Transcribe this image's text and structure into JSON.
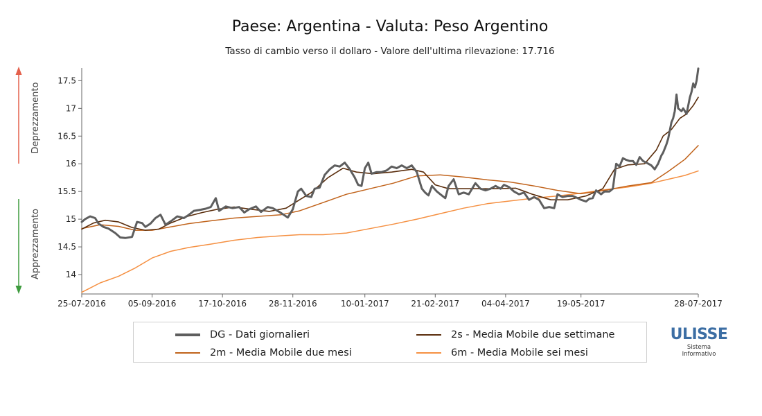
{
  "chart_data": {
    "type": "line",
    "title": "Paese: Argentina - Valuta: Peso Argentino",
    "subtitle": "Tasso di cambio verso il dollaro - Valore dell'ultima rilevazione: 17.716",
    "ylim": [
      13.65,
      17.73
    ],
    "y_ticks": [
      "14",
      "14.5",
      "15",
      "15.5",
      "16",
      "16.5",
      "17",
      "17.5"
    ],
    "x_range": [
      "2016-07-25",
      "2017-07-28"
    ],
    "x_ticks": [
      "25-07-2016",
      "05-09-2016",
      "17-10-2016",
      "28-11-2016",
      "10-01-2017",
      "21-02-2017",
      "04-04-2017",
      "19-05-2017",
      "28-07-2017"
    ],
    "ylabel_top": "Deprezzamento",
    "ylabel_bottom": "Apprezzamento",
    "grid": false,
    "series": [
      {
        "key": "6m",
        "name": "6m - Media Mobile sei mesi",
        "color": "#f59042",
        "width": 1.5,
        "points": [
          [
            "2016-07-25",
            13.68
          ],
          [
            "2016-08-05",
            13.85
          ],
          [
            "2016-08-16",
            13.97
          ],
          [
            "2016-08-26",
            14.12
          ],
          [
            "2016-09-05",
            14.3
          ],
          [
            "2016-09-16",
            14.42
          ],
          [
            "2016-09-27",
            14.49
          ],
          [
            "2016-10-10",
            14.55
          ],
          [
            "2016-10-24",
            14.62
          ],
          [
            "2016-11-07",
            14.67
          ],
          [
            "2016-11-21",
            14.7
          ],
          [
            "2016-12-02",
            14.72
          ],
          [
            "2016-12-16",
            14.72
          ],
          [
            "2016-12-30",
            14.75
          ],
          [
            "2017-01-13",
            14.83
          ],
          [
            "2017-01-27",
            14.91
          ],
          [
            "2017-02-10",
            15.0
          ],
          [
            "2017-02-24",
            15.1
          ],
          [
            "2017-03-10",
            15.2
          ],
          [
            "2017-03-24",
            15.28
          ],
          [
            "2017-04-07",
            15.33
          ],
          [
            "2017-04-21",
            15.38
          ],
          [
            "2017-05-05",
            15.42
          ],
          [
            "2017-05-19",
            15.47
          ],
          [
            "2017-06-02",
            15.53
          ],
          [
            "2017-06-16",
            15.58
          ],
          [
            "2017-06-30",
            15.65
          ],
          [
            "2017-07-10",
            15.72
          ],
          [
            "2017-07-20",
            15.79
          ],
          [
            "2017-07-28",
            15.87
          ]
        ]
      },
      {
        "key": "2m",
        "name": "2m - Media Mobile due mesi",
        "color": "#c0621a",
        "width": 1.5,
        "points": [
          [
            "2016-07-25",
            14.83
          ],
          [
            "2016-08-05",
            14.9
          ],
          [
            "2016-08-16",
            14.87
          ],
          [
            "2016-08-26",
            14.8
          ],
          [
            "2016-09-05",
            14.8
          ],
          [
            "2016-09-16",
            14.86
          ],
          [
            "2016-09-27",
            14.92
          ],
          [
            "2016-10-10",
            14.97
          ],
          [
            "2016-10-24",
            15.02
          ],
          [
            "2016-11-07",
            15.05
          ],
          [
            "2016-11-21",
            15.08
          ],
          [
            "2016-12-02",
            15.15
          ],
          [
            "2016-12-16",
            15.3
          ],
          [
            "2016-12-30",
            15.45
          ],
          [
            "2017-01-13",
            15.55
          ],
          [
            "2017-01-27",
            15.65
          ],
          [
            "2017-02-10",
            15.78
          ],
          [
            "2017-02-24",
            15.8
          ],
          [
            "2017-03-10",
            15.76
          ],
          [
            "2017-03-24",
            15.71
          ],
          [
            "2017-04-07",
            15.67
          ],
          [
            "2017-04-21",
            15.6
          ],
          [
            "2017-05-05",
            15.52
          ],
          [
            "2017-05-19",
            15.46
          ],
          [
            "2017-06-02",
            15.52
          ],
          [
            "2017-06-16",
            15.6
          ],
          [
            "2017-06-30",
            15.66
          ],
          [
            "2017-07-10",
            15.86
          ],
          [
            "2017-07-20",
            16.08
          ],
          [
            "2017-07-28",
            16.33
          ]
        ]
      },
      {
        "key": "2s",
        "name": "2s - Media Mobile due settimane",
        "color": "#5a2d0c",
        "width": 1.6,
        "points": [
          [
            "2016-07-25",
            14.82
          ],
          [
            "2016-08-01",
            14.93
          ],
          [
            "2016-08-08",
            14.98
          ],
          [
            "2016-08-16",
            14.95
          ],
          [
            "2016-08-24",
            14.85
          ],
          [
            "2016-09-01",
            14.8
          ],
          [
            "2016-09-09",
            14.82
          ],
          [
            "2016-09-16",
            14.93
          ],
          [
            "2016-09-26",
            15.05
          ],
          [
            "2016-10-05",
            15.12
          ],
          [
            "2016-10-14",
            15.18
          ],
          [
            "2016-10-24",
            15.22
          ],
          [
            "2016-11-03",
            15.18
          ],
          [
            "2016-11-14",
            15.14
          ],
          [
            "2016-11-24",
            15.2
          ],
          [
            "2016-12-02",
            15.35
          ],
          [
            "2016-12-09",
            15.48
          ],
          [
            "2016-12-19",
            15.75
          ],
          [
            "2016-12-28",
            15.92
          ],
          [
            "2017-01-05",
            15.85
          ],
          [
            "2017-01-15",
            15.82
          ],
          [
            "2017-01-26",
            15.85
          ],
          [
            "2017-02-07",
            15.9
          ],
          [
            "2017-02-14",
            15.85
          ],
          [
            "2017-02-21",
            15.62
          ],
          [
            "2017-03-01",
            15.55
          ],
          [
            "2017-03-10",
            15.55
          ],
          [
            "2017-03-20",
            15.55
          ],
          [
            "2017-03-28",
            15.55
          ],
          [
            "2017-04-10",
            15.56
          ],
          [
            "2017-04-20",
            15.45
          ],
          [
            "2017-05-01",
            15.35
          ],
          [
            "2017-05-11",
            15.35
          ],
          [
            "2017-05-22",
            15.42
          ],
          [
            "2017-06-01",
            15.55
          ],
          [
            "2017-06-08",
            15.9
          ],
          [
            "2017-06-16",
            15.98
          ],
          [
            "2017-06-26",
            16.0
          ],
          [
            "2017-07-03",
            16.25
          ],
          [
            "2017-07-07",
            16.5
          ],
          [
            "2017-07-12",
            16.62
          ],
          [
            "2017-07-17",
            16.82
          ],
          [
            "2017-07-21",
            16.9
          ],
          [
            "2017-07-25",
            17.05
          ],
          [
            "2017-07-28",
            17.2
          ]
        ]
      },
      {
        "key": "DG",
        "name": "DG - Dati giornalieri",
        "color": "#5e5e5e",
        "width": 3,
        "points": [
          [
            "2016-07-25",
            14.95
          ],
          [
            "2016-07-27",
            15.0
          ],
          [
            "2016-07-30",
            15.05
          ],
          [
            "2016-08-02",
            15.02
          ],
          [
            "2016-08-04",
            14.92
          ],
          [
            "2016-08-07",
            14.86
          ],
          [
            "2016-08-10",
            14.83
          ],
          [
            "2016-08-14",
            14.75
          ],
          [
            "2016-08-17",
            14.67
          ],
          [
            "2016-08-20",
            14.66
          ],
          [
            "2016-08-24",
            14.68
          ],
          [
            "2016-08-27",
            14.95
          ],
          [
            "2016-08-30",
            14.93
          ],
          [
            "2016-09-01",
            14.86
          ],
          [
            "2016-09-04",
            14.92
          ],
          [
            "2016-09-07",
            15.02
          ],
          [
            "2016-09-10",
            15.08
          ],
          [
            "2016-09-13",
            14.9
          ],
          [
            "2016-09-17",
            14.98
          ],
          [
            "2016-09-20",
            15.05
          ],
          [
            "2016-09-24",
            15.02
          ],
          [
            "2016-09-27",
            15.08
          ],
          [
            "2016-09-30",
            15.15
          ],
          [
            "2016-10-04",
            15.17
          ],
          [
            "2016-10-07",
            15.19
          ],
          [
            "2016-10-10",
            15.22
          ],
          [
            "2016-10-13",
            15.38
          ],
          [
            "2016-10-15",
            15.15
          ],
          [
            "2016-10-19",
            15.23
          ],
          [
            "2016-10-23",
            15.2
          ],
          [
            "2016-10-27",
            15.22
          ],
          [
            "2016-10-30",
            15.12
          ],
          [
            "2016-11-02",
            15.18
          ],
          [
            "2016-11-06",
            15.23
          ],
          [
            "2016-11-09",
            15.13
          ],
          [
            "2016-11-13",
            15.22
          ],
          [
            "2016-11-16",
            15.2
          ],
          [
            "2016-11-20",
            15.13
          ],
          [
            "2016-11-23",
            15.07
          ],
          [
            "2016-11-25",
            15.03
          ],
          [
            "2016-11-28",
            15.18
          ],
          [
            "2016-12-01",
            15.5
          ],
          [
            "2016-12-03",
            15.55
          ],
          [
            "2016-12-06",
            15.42
          ],
          [
            "2016-12-09",
            15.4
          ],
          [
            "2016-12-11",
            15.55
          ],
          [
            "2016-12-14",
            15.57
          ],
          [
            "2016-12-17",
            15.8
          ],
          [
            "2016-12-20",
            15.9
          ],
          [
            "2016-12-23",
            15.97
          ],
          [
            "2016-12-26",
            15.95
          ],
          [
            "2016-12-29",
            16.02
          ],
          [
            "2017-01-01",
            15.9
          ],
          [
            "2017-01-04",
            15.75
          ],
          [
            "2017-01-06",
            15.62
          ],
          [
            "2017-01-08",
            15.6
          ],
          [
            "2017-01-10",
            15.92
          ],
          [
            "2017-01-12",
            16.02
          ],
          [
            "2017-01-14",
            15.82
          ],
          [
            "2017-01-17",
            15.85
          ],
          [
            "2017-01-20",
            15.85
          ],
          [
            "2017-01-23",
            15.88
          ],
          [
            "2017-01-26",
            15.95
          ],
          [
            "2017-01-29",
            15.92
          ],
          [
            "2017-02-01",
            15.97
          ],
          [
            "2017-02-04",
            15.92
          ],
          [
            "2017-02-07",
            15.97
          ],
          [
            "2017-02-10",
            15.85
          ],
          [
            "2017-02-13",
            15.55
          ],
          [
            "2017-02-15",
            15.48
          ],
          [
            "2017-02-17",
            15.43
          ],
          [
            "2017-02-19",
            15.6
          ],
          [
            "2017-02-22",
            15.5
          ],
          [
            "2017-02-24",
            15.45
          ],
          [
            "2017-02-27",
            15.38
          ],
          [
            "2017-03-01",
            15.6
          ],
          [
            "2017-03-04",
            15.72
          ],
          [
            "2017-03-07",
            15.45
          ],
          [
            "2017-03-10",
            15.48
          ],
          [
            "2017-03-13",
            15.45
          ],
          [
            "2017-03-15",
            15.55
          ],
          [
            "2017-03-17",
            15.65
          ],
          [
            "2017-03-20",
            15.55
          ],
          [
            "2017-03-23",
            15.52
          ],
          [
            "2017-03-26",
            15.55
          ],
          [
            "2017-03-29",
            15.6
          ],
          [
            "2017-04-01",
            15.55
          ],
          [
            "2017-04-03",
            15.62
          ],
          [
            "2017-04-06",
            15.58
          ],
          [
            "2017-04-09",
            15.5
          ],
          [
            "2017-04-12",
            15.45
          ],
          [
            "2017-04-15",
            15.48
          ],
          [
            "2017-04-18",
            15.35
          ],
          [
            "2017-04-21",
            15.4
          ],
          [
            "2017-04-24",
            15.35
          ],
          [
            "2017-04-27",
            15.2
          ],
          [
            "2017-04-30",
            15.22
          ],
          [
            "2017-05-03",
            15.2
          ],
          [
            "2017-05-05",
            15.45
          ],
          [
            "2017-05-08",
            15.4
          ],
          [
            "2017-05-11",
            15.42
          ],
          [
            "2017-05-14",
            15.42
          ],
          [
            "2017-05-17",
            15.38
          ],
          [
            "2017-05-19",
            15.35
          ],
          [
            "2017-05-22",
            15.32
          ],
          [
            "2017-05-24",
            15.37
          ],
          [
            "2017-05-26",
            15.38
          ],
          [
            "2017-05-28",
            15.52
          ],
          [
            "2017-05-31",
            15.45
          ],
          [
            "2017-06-02",
            15.5
          ],
          [
            "2017-06-05",
            15.5
          ],
          [
            "2017-06-07",
            15.55
          ],
          [
            "2017-06-09",
            16.0
          ],
          [
            "2017-06-11",
            15.95
          ],
          [
            "2017-06-13",
            16.1
          ],
          [
            "2017-06-15",
            16.07
          ],
          [
            "2017-06-17",
            16.05
          ],
          [
            "2017-06-19",
            16.05
          ],
          [
            "2017-06-21",
            15.98
          ],
          [
            "2017-06-23",
            16.12
          ],
          [
            "2017-06-25",
            16.05
          ],
          [
            "2017-06-27",
            16.02
          ],
          [
            "2017-06-30",
            15.97
          ],
          [
            "2017-07-02",
            15.9
          ],
          [
            "2017-07-04",
            16.0
          ],
          [
            "2017-07-06",
            16.15
          ],
          [
            "2017-07-07",
            16.2
          ],
          [
            "2017-07-09",
            16.35
          ],
          [
            "2017-07-10",
            16.45
          ],
          [
            "2017-07-11",
            16.6
          ],
          [
            "2017-07-12",
            16.75
          ],
          [
            "2017-07-13",
            16.82
          ],
          [
            "2017-07-14",
            16.95
          ],
          [
            "2017-07-15",
            17.25
          ],
          [
            "2017-07-16",
            17.0
          ],
          [
            "2017-07-18",
            16.95
          ],
          [
            "2017-07-19",
            17.0
          ],
          [
            "2017-07-20",
            16.95
          ],
          [
            "2017-07-21",
            16.9
          ],
          [
            "2017-07-22",
            17.05
          ],
          [
            "2017-07-23",
            17.2
          ],
          [
            "2017-07-24",
            17.3
          ],
          [
            "2017-07-25",
            17.45
          ],
          [
            "2017-07-26",
            17.38
          ],
          [
            "2017-07-27",
            17.5
          ],
          [
            "2017-07-28",
            17.72
          ]
        ]
      }
    ]
  },
  "legend": {
    "items": [
      {
        "label": "DG - Dati giornalieri",
        "color": "#5e5e5e"
      },
      {
        "label": "2s - Media Mobile due settimane",
        "color": "#5a2d0c"
      },
      {
        "label": "2m - Media Mobile due mesi",
        "color": "#c0621a"
      },
      {
        "label": "6m - Media Mobile sei mesi",
        "color": "#f59042"
      }
    ]
  },
  "logo": {
    "word": "ULISSE",
    "line1": "Sistema",
    "line2": "Informativo",
    "color": "#3c6ea4"
  },
  "colors": {
    "arrow_up": "#e4604c",
    "arrow_down": "#3e9b3e",
    "axis": "#666666"
  }
}
